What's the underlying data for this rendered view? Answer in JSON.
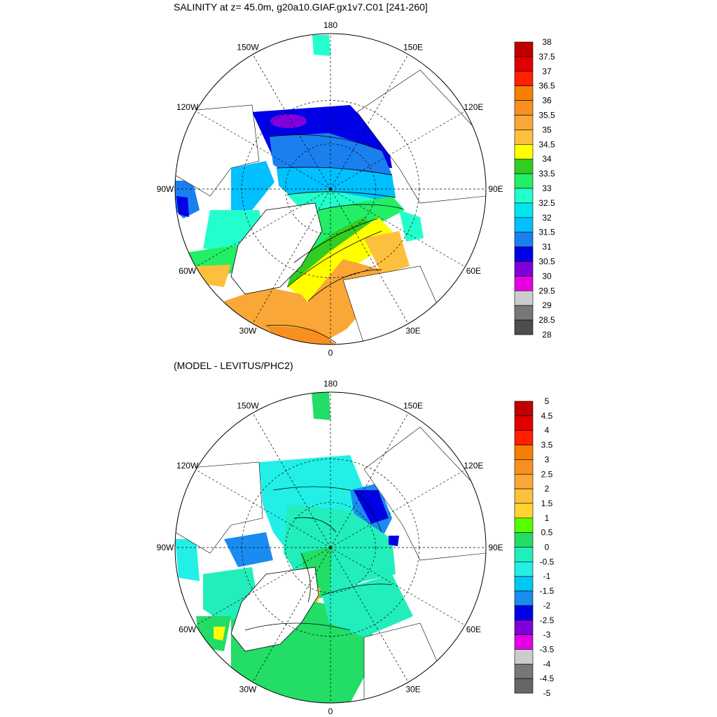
{
  "panels": [
    {
      "title": "SALINITY at z=  45.0m, g20a10.GIAF.gx1v7.C01 [241-260]",
      "colorbar": {
        "labels": [
          "38",
          "37.5",
          "37",
          "36.5",
          "36",
          "35.5",
          "35",
          "34.5",
          "34",
          "33.5",
          "33",
          "32.5",
          "32",
          "31.5",
          "31",
          "30.5",
          "30",
          "29.5",
          "29",
          "28.5",
          "28"
        ],
        "colors": [
          "#c00000",
          "#e00000",
          "#ff2000",
          "#f57f00",
          "#f79020",
          "#f9a838",
          "#fcc03c",
          "#ffff00",
          "#33cc22",
          "#22ee66",
          "#22ffcc",
          "#00e5f0",
          "#00c0ff",
          "#1a80f0",
          "#0000e6",
          "#7f00d9",
          "#e600e6",
          "#cccccc",
          "#777777",
          "#4d4d4d"
        ]
      }
    },
    {
      "title": "(MODEL - LEVITUS/PHC2)",
      "colorbar": {
        "labels": [
          "5",
          "4.5",
          "4",
          "3.5",
          "3",
          "2.5",
          "2",
          "1.5",
          "1",
          "0.5",
          "0",
          "-0.5",
          "-1",
          "-1.5",
          "-2",
          "-2.5",
          "-3",
          "-3.5",
          "-4",
          "-4.5",
          "-5"
        ],
        "colors": [
          "#c00000",
          "#e00000",
          "#ff2000",
          "#f57f00",
          "#f79020",
          "#f9a838",
          "#fcc03c",
          "#ffd62f",
          "#55ff00",
          "#22dd66",
          "#22eebb",
          "#22f0e6",
          "#00c8f5",
          "#1a8cf0",
          "#0000e6",
          "#7f00d9",
          "#e600e6",
          "#cccccc",
          "#777777",
          "#666666"
        ]
      }
    }
  ],
  "lon_labels": [
    "180",
    "150E",
    "120E",
    "90E",
    "60E",
    "30E",
    "0",
    "30W",
    "60W",
    "90W",
    "120W",
    "150W"
  ]
}
